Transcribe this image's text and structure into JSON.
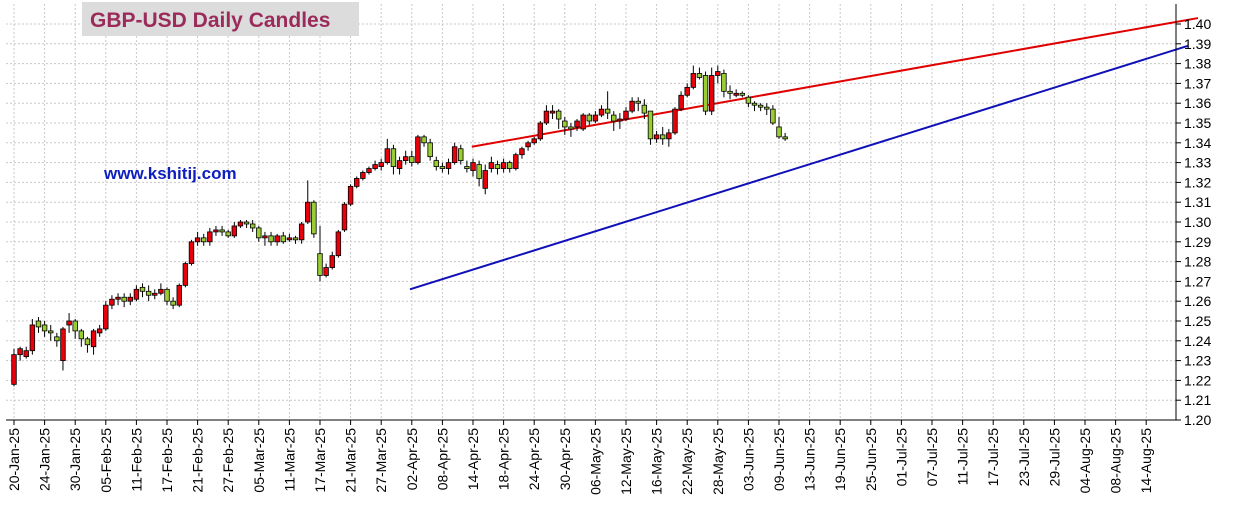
{
  "chart_data": {
    "type": "candlestick",
    "title": "GBP-USD Daily Candles",
    "watermark": "www.kshitij.com",
    "ylim": [
      1.2,
      1.4
    ],
    "y_ticks": [
      "1.20",
      "1.21",
      "1.22",
      "1.23",
      "1.24",
      "1.25",
      "1.26",
      "1.27",
      "1.28",
      "1.29",
      "1.30",
      "1.31",
      "1.32",
      "1.33",
      "1.34",
      "1.35",
      "1.36",
      "1.37",
      "1.38",
      "1.39",
      "1.40"
    ],
    "x_labels": [
      "20-Jan-25",
      "24-Jan-25",
      "30-Jan-25",
      "05-Feb-25",
      "11-Feb-25",
      "17-Feb-25",
      "21-Feb-25",
      "27-Feb-25",
      "05-Mar-25",
      "11-Mar-25",
      "17-Mar-25",
      "21-Mar-25",
      "27-Mar-25",
      "02-Apr-25",
      "08-Apr-25",
      "14-Apr-25",
      "18-Apr-25",
      "24-Apr-25",
      "30-Apr-25",
      "06-May-25",
      "12-May-25",
      "16-May-25",
      "22-May-25",
      "28-May-25",
      "03-Jun-25",
      "09-Jun-25",
      "13-Jun-25",
      "19-Jun-25",
      "25-Jun-25",
      "01-Jul-25",
      "07-Jul-25",
      "11-Jul-25",
      "17-Jul-25",
      "23-Jul-25",
      "29-Jul-25",
      "04-Aug-25",
      "08-Aug-25",
      "14-Aug-25"
    ],
    "colors": {
      "up": "#9acd32",
      "down": "#e8000b",
      "wick": "#000000",
      "resistance": "#e00000",
      "support": "#1010b8",
      "grid": "#c8c8c8"
    },
    "candles": [
      [
        1.233,
        1.236,
        1.217,
        1.218
      ],
      [
        1.236,
        1.237,
        1.23,
        1.233
      ],
      [
        1.235,
        1.237,
        1.231,
        1.232
      ],
      [
        1.248,
        1.251,
        1.233,
        1.235
      ],
      [
        1.247,
        1.252,
        1.244,
        1.25
      ],
      [
        1.245,
        1.25,
        1.242,
        1.248
      ],
      [
        1.244,
        1.248,
        1.24,
        1.245
      ],
      [
        1.24,
        1.244,
        1.237,
        1.242
      ],
      [
        1.246,
        1.247,
        1.225,
        1.23
      ],
      [
        1.25,
        1.254,
        1.244,
        1.248
      ],
      [
        1.245,
        1.251,
        1.241,
        1.25
      ],
      [
        1.241,
        1.246,
        1.237,
        1.245
      ],
      [
        1.238,
        1.242,
        1.234,
        1.241
      ],
      [
        1.245,
        1.246,
        1.233,
        1.237
      ],
      [
        1.246,
        1.248,
        1.242,
        1.244
      ],
      [
        1.258,
        1.26,
        1.245,
        1.246
      ],
      [
        1.261,
        1.263,
        1.256,
        1.258
      ],
      [
        1.262,
        1.264,
        1.258,
        1.261
      ],
      [
        1.26,
        1.264,
        1.257,
        1.262
      ],
      [
        1.262,
        1.264,
        1.258,
        1.26
      ],
      [
        1.266,
        1.268,
        1.26,
        1.261
      ],
      [
        1.265,
        1.269,
        1.262,
        1.267
      ],
      [
        1.263,
        1.268,
        1.26,
        1.265
      ],
      [
        1.264,
        1.266,
        1.261,
        1.263
      ],
      [
        1.266,
        1.269,
        1.263,
        1.264
      ],
      [
        1.26,
        1.267,
        1.258,
        1.266
      ],
      [
        1.258,
        1.262,
        1.256,
        1.26
      ],
      [
        1.268,
        1.269,
        1.257,
        1.258
      ],
      [
        1.279,
        1.28,
        1.267,
        1.268
      ],
      [
        1.29,
        1.291,
        1.278,
        1.279
      ],
      [
        1.292,
        1.295,
        1.288,
        1.29
      ],
      [
        1.29,
        1.294,
        1.288,
        1.292
      ],
      [
        1.295,
        1.297,
        1.288,
        1.29
      ],
      [
        1.296,
        1.298,
        1.293,
        1.295
      ],
      [
        1.295,
        1.298,
        1.293,
        1.296
      ],
      [
        1.293,
        1.296,
        1.292,
        1.295
      ],
      [
        1.298,
        1.3,
        1.292,
        1.293
      ],
      [
        1.3,
        1.301,
        1.297,
        1.298
      ],
      [
        1.299,
        1.301,
        1.297,
        1.3
      ],
      [
        1.297,
        1.301,
        1.295,
        1.299
      ],
      [
        1.292,
        1.298,
        1.29,
        1.297
      ],
      [
        1.293,
        1.295,
        1.288,
        1.292
      ],
      [
        1.29,
        1.295,
        1.288,
        1.293
      ],
      [
        1.293,
        1.294,
        1.288,
        1.29
      ],
      [
        1.29,
        1.295,
        1.289,
        1.293
      ],
      [
        1.292,
        1.294,
        1.29,
        1.291
      ],
      [
        1.291,
        1.293,
        1.289,
        1.292
      ],
      [
        1.299,
        1.3,
        1.289,
        1.291
      ],
      [
        1.31,
        1.321,
        1.299,
        1.3
      ],
      [
        1.294,
        1.311,
        1.292,
        1.31
      ],
      [
        1.273,
        1.298,
        1.27,
        1.284
      ],
      [
        1.277,
        1.279,
        1.272,
        1.273
      ],
      [
        1.283,
        1.285,
        1.276,
        1.277
      ],
      [
        1.295,
        1.296,
        1.282,
        1.283
      ],
      [
        1.309,
        1.31,
        1.295,
        1.296
      ],
      [
        1.318,
        1.319,
        1.308,
        1.309
      ],
      [
        1.322,
        1.323,
        1.317,
        1.318
      ],
      [
        1.325,
        1.326,
        1.321,
        1.322
      ],
      [
        1.327,
        1.328,
        1.324,
        1.325
      ],
      [
        1.329,
        1.331,
        1.326,
        1.327
      ],
      [
        1.33,
        1.332,
        1.326,
        1.328
      ],
      [
        1.337,
        1.342,
        1.329,
        1.33
      ],
      [
        1.328,
        1.339,
        1.324,
        1.337
      ],
      [
        1.331,
        1.333,
        1.324,
        1.327
      ],
      [
        1.333,
        1.336,
        1.329,
        1.331
      ],
      [
        1.33,
        1.336,
        1.328,
        1.333
      ],
      [
        1.343,
        1.344,
        1.329,
        1.33
      ],
      [
        1.34,
        1.344,
        1.338,
        1.343
      ],
      [
        1.333,
        1.342,
        1.331,
        1.34
      ],
      [
        1.328,
        1.333,
        1.326,
        1.331
      ],
      [
        1.327,
        1.33,
        1.325,
        1.328
      ],
      [
        1.33,
        1.332,
        1.324,
        1.327
      ],
      [
        1.338,
        1.34,
        1.329,
        1.33
      ],
      [
        1.331,
        1.339,
        1.329,
        1.337
      ],
      [
        1.327,
        1.331,
        1.325,
        1.328
      ],
      [
        1.33,
        1.332,
        1.323,
        1.326
      ],
      [
        1.322,
        1.331,
        1.318,
        1.329
      ],
      [
        1.326,
        1.329,
        1.314,
        1.317
      ],
      [
        1.33,
        1.333,
        1.325,
        1.327
      ],
      [
        1.327,
        1.331,
        1.324,
        1.329
      ],
      [
        1.33,
        1.332,
        1.325,
        1.327
      ],
      [
        1.327,
        1.331,
        1.325,
        1.33
      ],
      [
        1.334,
        1.335,
        1.326,
        1.327
      ],
      [
        1.337,
        1.338,
        1.332,
        1.334
      ],
      [
        1.34,
        1.341,
        1.336,
        1.338
      ],
      [
        1.342,
        1.343,
        1.339,
        1.34
      ],
      [
        1.35,
        1.351,
        1.341,
        1.342
      ],
      [
        1.356,
        1.359,
        1.349,
        1.35
      ],
      [
        1.356,
        1.359,
        1.352,
        1.355
      ],
      [
        1.352,
        1.357,
        1.347,
        1.356
      ],
      [
        1.348,
        1.353,
        1.344,
        1.351
      ],
      [
        1.347,
        1.35,
        1.343,
        1.348
      ],
      [
        1.351,
        1.352,
        1.346,
        1.348
      ],
      [
        1.354,
        1.355,
        1.346,
        1.347
      ],
      [
        1.351,
        1.355,
        1.349,
        1.354
      ],
      [
        1.354,
        1.356,
        1.35,
        1.351
      ],
      [
        1.357,
        1.359,
        1.353,
        1.354
      ],
      [
        1.355,
        1.366,
        1.352,
        1.357
      ],
      [
        1.351,
        1.356,
        1.346,
        1.354
      ],
      [
        1.352,
        1.355,
        1.347,
        1.351
      ],
      [
        1.356,
        1.358,
        1.351,
        1.352
      ],
      [
        1.361,
        1.363,
        1.355,
        1.356
      ],
      [
        1.36,
        1.363,
        1.356,
        1.361
      ],
      [
        1.355,
        1.362,
        1.352,
        1.359
      ],
      [
        1.342,
        1.356,
        1.339,
        1.356
      ],
      [
        1.344,
        1.346,
        1.34,
        1.342
      ],
      [
        1.342,
        1.348,
        1.339,
        1.344
      ],
      [
        1.345,
        1.347,
        1.338,
        1.342
      ],
      [
        1.357,
        1.358,
        1.344,
        1.345
      ],
      [
        1.364,
        1.366,
        1.356,
        1.357
      ],
      [
        1.368,
        1.37,
        1.363,
        1.364
      ],
      [
        1.375,
        1.379,
        1.367,
        1.368
      ],
      [
        1.373,
        1.378,
        1.372,
        1.375
      ],
      [
        1.356,
        1.376,
        1.354,
        1.374
      ],
      [
        1.374,
        1.378,
        1.354,
        1.356
      ],
      [
        1.376,
        1.379,
        1.37,
        1.374
      ],
      [
        1.366,
        1.377,
        1.363,
        1.375
      ],
      [
        1.365,
        1.369,
        1.362,
        1.366
      ],
      [
        1.365,
        1.367,
        1.363,
        1.364
      ],
      [
        1.364,
        1.366,
        1.363,
        1.365
      ],
      [
        1.36,
        1.364,
        1.358,
        1.363
      ],
      [
        1.359,
        1.361,
        1.356,
        1.36
      ],
      [
        1.358,
        1.36,
        1.356,
        1.359
      ],
      [
        1.357,
        1.36,
        1.354,
        1.358
      ],
      [
        1.35,
        1.359,
        1.349,
        1.357
      ],
      [
        1.343,
        1.353,
        1.342,
        1.348
      ],
      [
        1.342,
        1.345,
        1.341,
        1.343
      ]
    ],
    "trendlines": [
      {
        "name": "resistance",
        "from": [
          1.338
        ],
        "to": [
          1.403
        ]
      },
      {
        "name": "support",
        "from": [
          1.266
        ],
        "to": [
          1.389
        ]
      }
    ],
    "grid": true
  }
}
